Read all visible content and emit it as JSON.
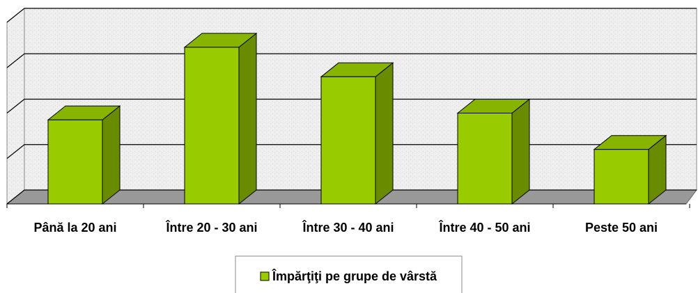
{
  "chart_data": {
    "type": "bar3d",
    "categories": [
      "Până la 20 ani",
      "Între 20 - 30 ani",
      "Între 30 - 40 ani",
      "Între 40 - 50 ani",
      "Peste 50 ani"
    ],
    "series": [
      {
        "name": "Împărţiţi pe grupe de vârstă",
        "color": "#99cc00",
        "values": [
          1.85,
          3.45,
          2.8,
          2.0,
          1.2
        ]
      }
    ],
    "ylim": [
      0,
      4
    ],
    "grid_lines": [
      0,
      1,
      2,
      3,
      4
    ],
    "legend": "bottom"
  }
}
